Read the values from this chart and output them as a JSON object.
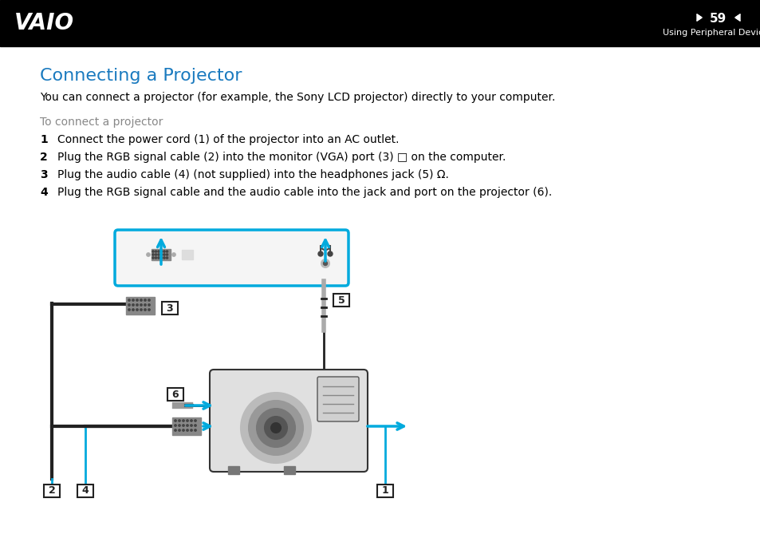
{
  "header_bg": "#000000",
  "header_text_color": "#ffffff",
  "header_logo": "VAIO",
  "header_page": "59",
  "header_section": "Using Peripheral Devices",
  "title": "Connecting a Projector",
  "title_color": "#1a7abf",
  "body_bg": "#ffffff",
  "body_text_color": "#000000",
  "subtitle": "You can connect a projector (for example, the Sony LCD projector) directly to your computer.",
  "subsection": "To connect a projector",
  "subsection_color": "#888888",
  "steps": [
    "Connect the power cord (1) of the projector into an AC outlet.",
    "Plug the RGB signal cable (2) into the monitor (VGA) port (3) □ on the computer.",
    "Plug the audio cable (4) (not supplied) into the headphones jack (5) Ω.",
    "Plug the RGB signal cable and the audio cable into the jack and port on the projector (6)."
  ],
  "cyan_color": "#00aadd",
  "label_box_color": "#000000",
  "cable_color": "#222222"
}
